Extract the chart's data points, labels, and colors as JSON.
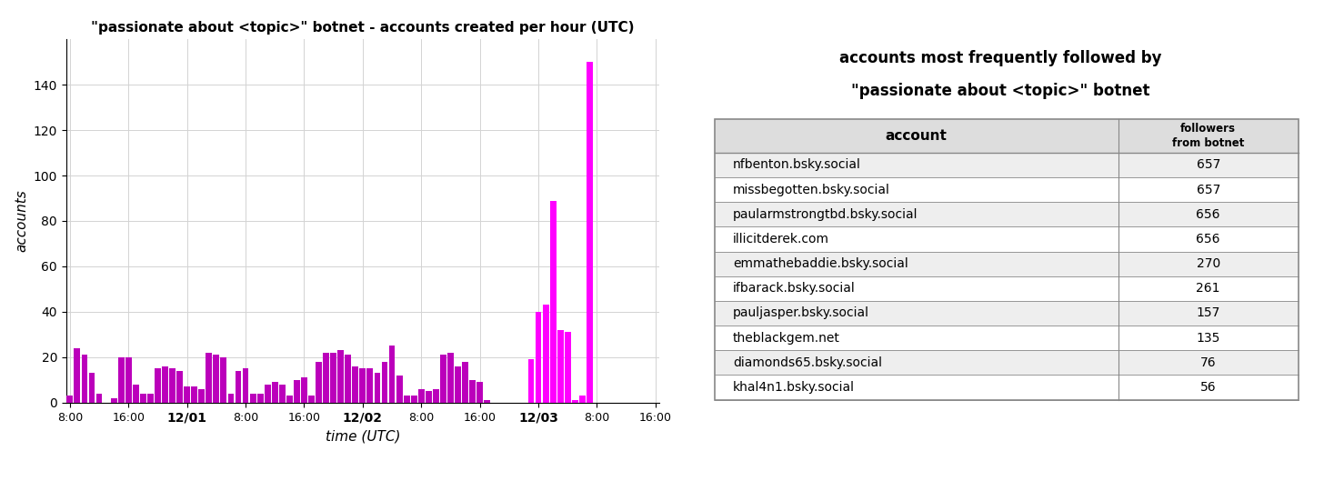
{
  "title": "\"passionate about <topic>\" botnet - accounts created per hour (UTC)",
  "xlabel": "time (UTC)",
  "ylabel": "accounts",
  "ylim": [
    0,
    160
  ],
  "yticks": [
    0,
    20,
    40,
    60,
    80,
    100,
    120,
    140
  ],
  "hours": [
    0,
    1,
    2,
    3,
    4,
    5,
    6,
    7,
    8,
    9,
    10,
    11,
    12,
    13,
    14,
    15,
    16,
    17,
    18,
    19,
    20,
    21,
    22,
    23,
    24,
    25,
    26,
    27,
    28,
    29,
    30,
    31,
    32,
    33,
    34,
    35,
    36,
    37,
    38,
    39,
    40,
    41,
    42,
    43,
    44,
    45,
    46,
    47,
    48,
    49,
    50,
    51,
    52,
    53,
    54,
    55,
    56,
    57,
    58,
    59,
    60,
    61,
    62,
    63,
    64,
    65,
    66,
    67,
    68,
    69,
    70,
    71,
    72,
    73,
    74,
    75,
    76,
    77,
    78,
    79,
    80
  ],
  "values": [
    3,
    24,
    21,
    13,
    4,
    0,
    2,
    20,
    20,
    8,
    4,
    4,
    15,
    16,
    15,
    14,
    7,
    7,
    6,
    22,
    21,
    20,
    4,
    14,
    15,
    4,
    4,
    8,
    9,
    8,
    3,
    10,
    11,
    3,
    18,
    22,
    22,
    23,
    21,
    16,
    15,
    15,
    13,
    18,
    25,
    12,
    3,
    3,
    6,
    5,
    6,
    21,
    22,
    16,
    18,
    10,
    9,
    1,
    0,
    0,
    0,
    0,
    0,
    19,
    40,
    43,
    89,
    32,
    31,
    1,
    3,
    150,
    0,
    0,
    0,
    0,
    0,
    0,
    0,
    0,
    0
  ],
  "tick_positions": [
    0,
    8,
    16,
    24,
    32,
    40,
    48,
    56,
    64,
    72,
    80
  ],
  "tick_labels": [
    "8:00",
    "16:00",
    "12/01",
    "8:00",
    "16:00",
    "12/02",
    "8:00",
    "16:00",
    "12/03",
    "8:00",
    "16:00"
  ],
  "table_title_line1": "accounts most frequently followed by",
  "table_title_line2": "\"passionate about <topic>\" botnet",
  "table_col1_header": "account",
  "table_col2_header": "followers\nfrom botnet",
  "table_accounts": [
    "nfbenton.bsky.social",
    "missbegotten.bsky.social",
    "paularmstrongtbd.bsky.social",
    "illicitderek.com",
    "emmathebaddie.bsky.social",
    "ifbarack.bsky.social",
    "pauljasper.bsky.social",
    "theblackgem.net",
    "diamonds65.bsky.social",
    "khal4n1.bsky.social"
  ],
  "table_values": [
    657,
    657,
    656,
    656,
    270,
    261,
    157,
    135,
    76,
    56
  ],
  "background_color": "#ffffff",
  "border_color": "#888888",
  "even_row_color": "#eeeeee",
  "odd_row_color": "#ffffff"
}
